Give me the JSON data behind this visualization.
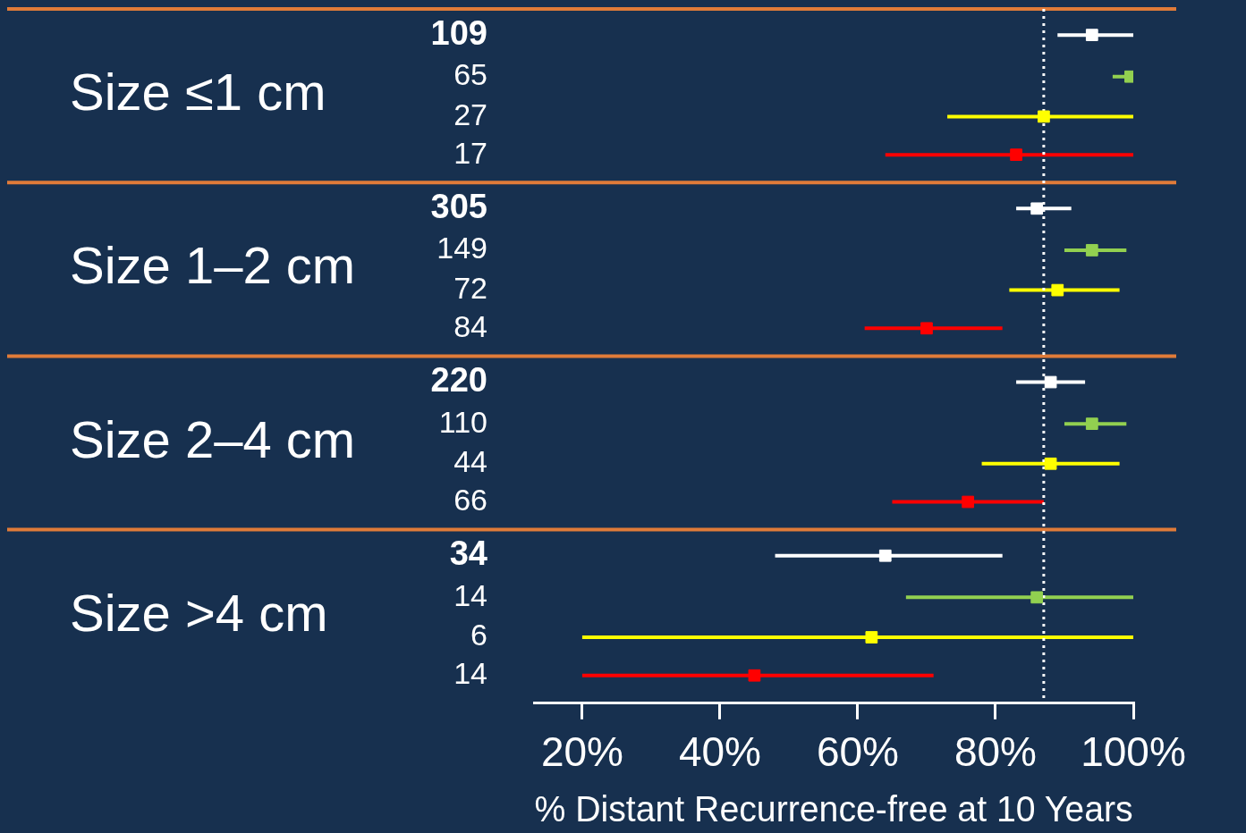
{
  "chart_data": {
    "type": "scatter",
    "orientation": "horizontal",
    "categories": [
      "Size ≤1 cm",
      "Size 1–2 cm",
      "Size 2–4 cm",
      "Size >4 cm"
    ],
    "series": [
      {
        "color": "#ffffff",
        "values": [
          94,
          86,
          88,
          64
        ],
        "errors": [
          [
            89,
            100
          ],
          [
            83,
            91
          ],
          [
            83,
            93
          ],
          [
            48,
            81
          ]
        ]
      },
      {
        "color": "#92d050",
        "values": [
          99.6,
          94,
          94,
          86
        ],
        "errors": [
          [
            97,
            100
          ],
          [
            90,
            99
          ],
          [
            90,
            99
          ],
          [
            67,
            100
          ]
        ]
      },
      {
        "color": "#ffff00",
        "values": [
          87,
          89,
          88,
          62
        ],
        "errors": [
          [
            73,
            100
          ],
          [
            82,
            98
          ],
          [
            78,
            98
          ],
          [
            20,
            100
          ]
        ]
      },
      {
        "color": "#ff0000",
        "values": [
          83,
          70,
          76,
          45
        ],
        "errors": [
          [
            64,
            100
          ],
          [
            61,
            81
          ],
          [
            65,
            87
          ],
          [
            20,
            71
          ]
        ]
      }
    ],
    "annotations": [
      "109",
      "65",
      "27",
      "17",
      "305",
      "149",
      "72",
      "84",
      "220",
      "110",
      "44",
      "66",
      "34",
      "14",
      "6",
      "14"
    ],
    "xlabel": "% Distant Recurrence-free at 10 Years",
    "xlim": [
      13,
      100
    ],
    "xticks": [
      {
        "value": 20,
        "label": "20%"
      },
      {
        "value": 40,
        "label": "40%"
      },
      {
        "value": 60,
        "label": "60%"
      },
      {
        "value": 80,
        "label": "80%"
      },
      {
        "value": 100,
        "label": "100%"
      }
    ],
    "ref_lines": [
      {
        "axis": "x",
        "value": 87,
        "color": "#ffffff",
        "line_style": "dotted"
      }
    ],
    "grid": "y",
    "marker": "square",
    "legend": false
  }
}
